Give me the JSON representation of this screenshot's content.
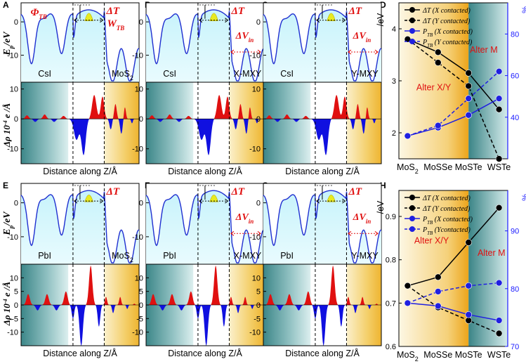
{
  "letters": {
    "A": "A",
    "B": "B",
    "C": "C",
    "D": "D",
    "E": "E",
    "F": "F",
    "G": "G",
    "H": "H"
  },
  "axis_labels": {
    "ep": "E",
    "ep_sub": "p",
    "ep_unit": "/eV",
    "drho": "Δρ 10",
    "drho_exp": "-4",
    "drho_unit": " e /Å",
    "xaxis": "Distance along Z/Å",
    "ev_unit": "/eV",
    "percent_unit": "%"
  },
  "top_row": {
    "panels": [
      {
        "left": "CsI",
        "right": "MoS",
        "right_sub": "2",
        "ticks_ep": [
          "0",
          "-10"
        ],
        "ticks_drho": [
          "10",
          "0",
          "-10"
        ]
      },
      {
        "left": "CsI",
        "right": "X-MXY",
        "ticks_ep": [
          "0",
          "-10"
        ],
        "ticks_drho": [
          "10",
          "0",
          "-10"
        ]
      },
      {
        "left": "CsI",
        "right": "Y-MXY",
        "ticks_ep": [
          "0",
          "-10"
        ],
        "ticks_drho": [
          "10",
          "0",
          "-10"
        ]
      }
    ]
  },
  "bottom_row": {
    "panels": [
      {
        "left": "PbI",
        "right": "MoS",
        "right_sub": "2",
        "ticks_ep": [
          "0",
          "-10"
        ],
        "ticks_drho": [
          "10",
          "5",
          "0",
          "-5",
          "-10"
        ]
      },
      {
        "left": "PbI",
        "right": "X-MXY",
        "ticks_ep": [
          "0",
          "-10"
        ],
        "ticks_drho": [
          "10",
          "5",
          "0",
          "-5",
          "-10"
        ]
      },
      {
        "left": "PbI",
        "right": "Y-MXY",
        "ticks_ep": [
          "0",
          "-10"
        ],
        "ticks_drho": [
          "10",
          "5",
          "0",
          "-5",
          "-10"
        ]
      }
    ]
  },
  "annotations": {
    "phi_tb": "Φ",
    "phi_tb_sub": "TB",
    "w_tb": "W",
    "w_tb_sub": "TB",
    "delta_t": "ΔT",
    "delta_v": "ΔV",
    "delta_v_sub": "in"
  },
  "region_labels": {
    "D_alter_xy": "Alter X/Y",
    "D_alter_m": "Alter M",
    "H_alter_xy": "Alter X/Y",
    "H_alter_m": "Alter M"
  },
  "colors": {
    "curve": "#1f2fd0",
    "positive": "#e01010",
    "negative": "#1010e0",
    "teal": "#3f8a8c",
    "orange": "#f0a010",
    "barrier": "#e8ea20"
  },
  "chart_data": [
    {
      "id": "D",
      "type": "line",
      "categories": [
        "MoS2",
        "MoSSe",
        "MoSTe",
        "WSTe"
      ],
      "category_labels": [
        {
          "t": "MoS",
          "s": "2"
        },
        {
          "t": "MoSSe",
          "s": ""
        },
        {
          "t": "MoSTe",
          "s": ""
        },
        {
          "t": "WSTe",
          "s": ""
        }
      ],
      "ylabel_left": "/eV",
      "ylabel_right": "%",
      "ylim_left": [
        1.5,
        4.5
      ],
      "yticks_left": [
        2,
        3,
        4
      ],
      "ylim_right": [
        20,
        95
      ],
      "yticks_right": [
        40,
        60,
        80
      ],
      "series": [
        {
          "name": "ΔT (X contacted)",
          "axis": "left",
          "style": "solid",
          "color": "#000000",
          "values": [
            3.8,
            3.55,
            3.15,
            2.45
          ]
        },
        {
          "name": "ΔT (Y contacted)",
          "axis": "left",
          "style": "dashed",
          "color": "#000000",
          "values": [
            3.8,
            3.35,
            2.9,
            1.5
          ]
        },
        {
          "name": "P (X contacted)",
          "axis": "right",
          "style": "solid",
          "color": "#2020e0",
          "values": [
            31,
            35,
            41,
            49
          ]
        },
        {
          "name": "P (Y contacted)",
          "axis": "right",
          "style": "dashed",
          "color": "#2020e0",
          "values": [
            31,
            36,
            49,
            62
          ]
        }
      ],
      "legend": [
        {
          "pre": "ΔT",
          "sub": "",
          "post": " (X contacted)"
        },
        {
          "pre": "ΔT",
          "sub": "",
          "post": " (Y contacted)"
        },
        {
          "pre": "P",
          "sub": "TB",
          "post": " (X contacted)"
        },
        {
          "pre": "P",
          "sub": "TB",
          "post": " (Y contacted)"
        }
      ]
    },
    {
      "id": "H",
      "type": "line",
      "categories": [
        "MoS2",
        "MoSSe",
        "MoSTe",
        "WSTe"
      ],
      "category_labels": [
        {
          "t": "MoS",
          "s": "2"
        },
        {
          "t": "MoSSe",
          "s": ""
        },
        {
          "t": "MoSTe",
          "s": ""
        },
        {
          "t": "WSTe",
          "s": ""
        }
      ],
      "ylabel_left": "/eV",
      "ylabel_right": "%",
      "ylim_left": [
        0.6,
        0.96
      ],
      "yticks_left": [
        0.6,
        0.7,
        0.8,
        0.9
      ],
      "ylim_right": [
        70,
        97
      ],
      "yticks_right": [
        70,
        80,
        90
      ],
      "series": [
        {
          "name": "ΔT (X contacted)",
          "axis": "left",
          "style": "solid",
          "color": "#000000",
          "values": [
            0.74,
            0.76,
            0.84,
            0.92
          ]
        },
        {
          "name": "ΔT (Y contacted)",
          "axis": "left",
          "style": "dashed",
          "color": "#000000",
          "values": [
            0.74,
            0.69,
            0.66,
            0.63
          ]
        },
        {
          "name": "P (X contacted)",
          "axis": "right",
          "style": "solid",
          "color": "#2020e0",
          "values": [
            77.5,
            77,
            75.5,
            74.5
          ]
        },
        {
          "name": "P (Ycontacted)",
          "axis": "right",
          "style": "dashed",
          "color": "#2020e0",
          "values": [
            77.5,
            79.5,
            80.5,
            81
          ]
        }
      ],
      "legend": [
        {
          "pre": "ΔT",
          "sub": "",
          "post": " (X contacted)"
        },
        {
          "pre": "ΔT",
          "sub": "",
          "post": " (Y contacted)"
        },
        {
          "pre": "P",
          "sub": "TB",
          "post": " (X contacted)"
        },
        {
          "pre": "P",
          "sub": "TB",
          "post": " (Ycontacted)"
        }
      ]
    }
  ]
}
